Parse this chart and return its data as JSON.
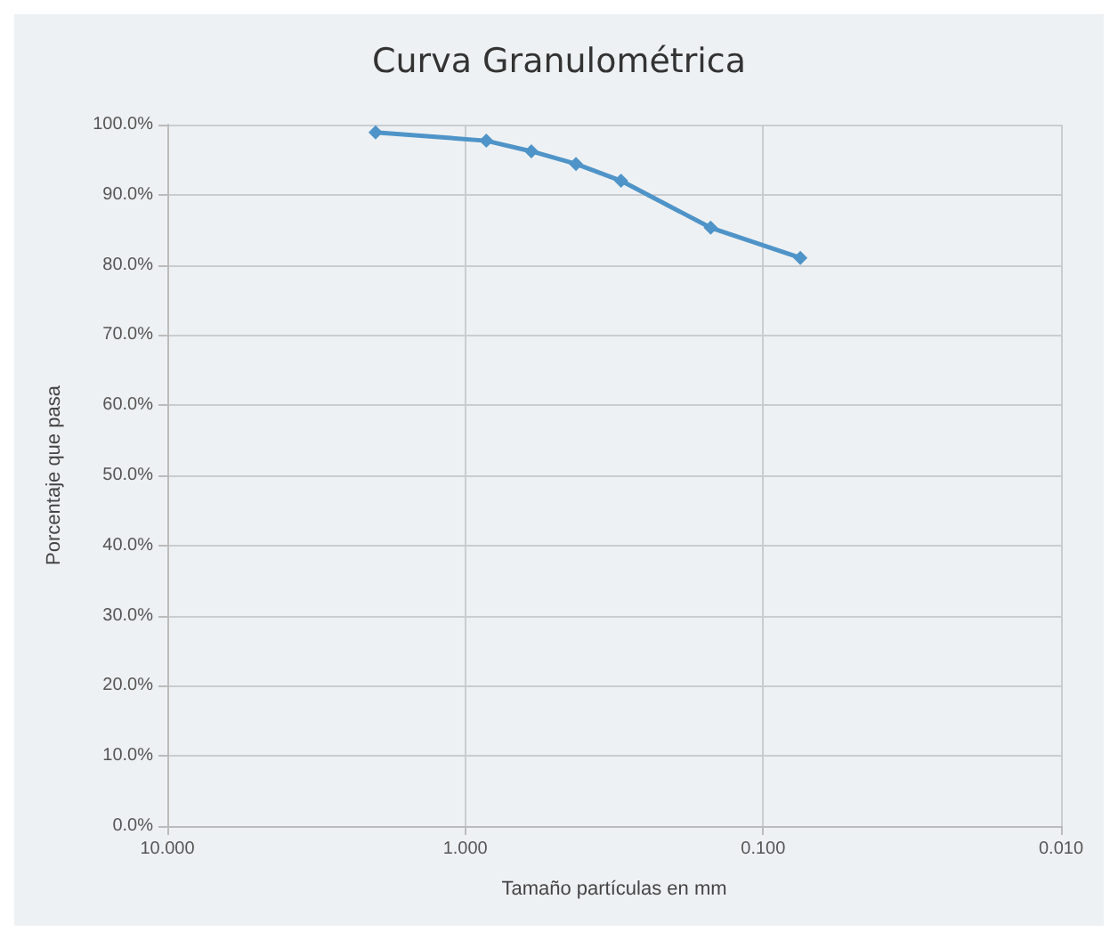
{
  "chart_data": {
    "type": "line",
    "title": "Curva Granulométrica",
    "xlabel": "Tamaño partículas en mm",
    "ylabel": "Porcentaje que pasa",
    "x": [
      2.0,
      0.85,
      0.6,
      0.425,
      0.3,
      0.15,
      0.075
    ],
    "series": [
      {
        "color": "#4f94c8",
        "values": [
          98.9,
          97.7,
          96.2,
          94.4,
          92.0,
          85.3,
          81.0
        ]
      }
    ],
    "log": "x",
    "xlim": [
      10,
      0.01
    ],
    "xticks": [
      {
        "value": 10,
        "label": "10.000"
      },
      {
        "value": 1,
        "label": "1.000"
      },
      {
        "value": 0.1,
        "label": "0.100"
      },
      {
        "value": 0.01,
        "label": "0.010"
      }
    ],
    "ylim": [
      0,
      100
    ],
    "yticks": [
      {
        "value": 0,
        "label": "0.0%"
      },
      {
        "value": 10,
        "label": "10.0%"
      },
      {
        "value": 20,
        "label": "20.0%"
      },
      {
        "value": 30,
        "label": "30.0%"
      },
      {
        "value": 40,
        "label": "40.0%"
      },
      {
        "value": 50,
        "label": "50.0%"
      },
      {
        "value": 60,
        "label": "60.0%"
      },
      {
        "value": 70,
        "label": "70.0%"
      },
      {
        "value": 80,
        "label": "80.0%"
      },
      {
        "value": 90,
        "label": "90.0%"
      },
      {
        "value": 100,
        "label": "100.0%"
      }
    ],
    "grid": true,
    "marker": "diamond",
    "line_style": "solid"
  }
}
